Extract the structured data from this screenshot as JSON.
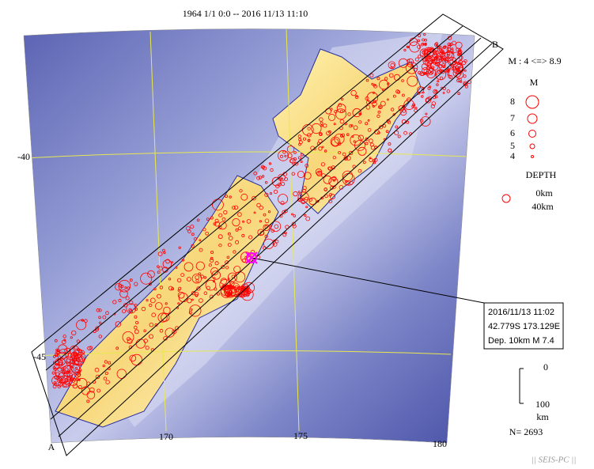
{
  "title": "1964 1/1 0:0 -- 2016 11/13 11:10",
  "axes": {
    "lat_labels": [
      "-40",
      "-45"
    ],
    "lon_labels": [
      "170",
      "175",
      "180"
    ]
  },
  "profile": {
    "start": "A",
    "end": "B"
  },
  "legend": {
    "magnitude_range": "M : 4 <=> 8.9",
    "magnitude_title": "M",
    "magnitudes": [
      "8",
      "7",
      "6",
      "5",
      "4"
    ],
    "depth_title": "DEPTH",
    "depths": [
      "0km",
      "40km"
    ]
  },
  "event_box": {
    "lines": [
      "2016/11/13 11:02",
      "42.779S   173.129E",
      "Dep. 10km    M 7.4"
    ]
  },
  "scale": {
    "top": "0",
    "bottom": "100",
    "unit": "km"
  },
  "count": "N= 2693",
  "footer": "|| SEIS-PC ||"
}
